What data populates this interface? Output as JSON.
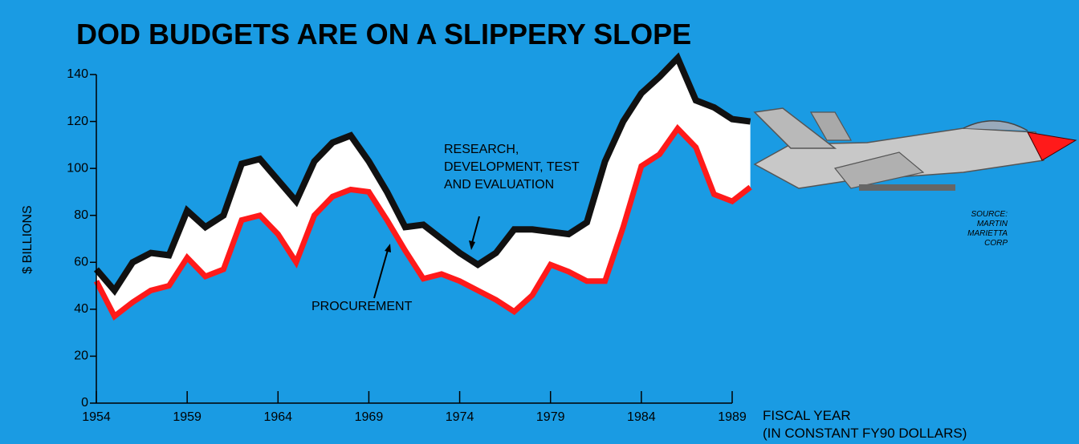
{
  "chart_data": {
    "type": "stacked-area",
    "title": "DOD BUDGETS ARE ON A SLIPPERY SLOPE",
    "ylabel": "$ BILLIONS",
    "xlabel": "FISCAL YEAR\n(IN CONSTANT FY90 DOLLARS)",
    "source": "SOURCE:\nMARTIN\nMARIETTA\nCORP",
    "x": [
      1954,
      1955,
      1956,
      1957,
      1958,
      1959,
      1960,
      1961,
      1962,
      1963,
      1964,
      1965,
      1966,
      1967,
      1968,
      1969,
      1970,
      1971,
      1972,
      1973,
      1974,
      1975,
      1976,
      1977,
      1978,
      1979,
      1980,
      1981,
      1982,
      1983,
      1984,
      1985,
      1986,
      1987,
      1988,
      1989,
      1990
    ],
    "series": [
      {
        "name": "PROCUREMENT",
        "color": "#ff1a1a",
        "values": [
          52,
          37,
          43,
          48,
          50,
          62,
          54,
          57,
          78,
          80,
          72,
          60,
          80,
          88,
          91,
          90,
          78,
          65,
          53,
          55,
          52,
          48,
          44,
          39,
          46,
          59,
          56,
          52,
          52,
          75,
          101,
          106,
          117,
          109,
          89,
          86,
          92
        ]
      },
      {
        "name": "RESEARCH, DEVELOPMENT, TEST AND EVALUATION",
        "color": "#111111",
        "values": [
          5,
          11,
          17,
          16,
          13,
          20,
          21,
          23,
          24,
          24,
          23,
          26,
          23,
          23,
          23,
          13,
          12,
          10,
          23,
          15,
          12,
          11,
          20,
          35,
          28,
          14,
          16,
          25,
          51,
          45,
          31,
          33,
          30,
          20,
          37,
          35,
          28
        ]
      }
    ],
    "xlim": [
      1954,
      1989
    ],
    "xticks": [
      1954,
      1959,
      1964,
      1969,
      1974,
      1979,
      1984,
      1989
    ],
    "ylim": [
      0,
      140
    ],
    "yticks": [
      0,
      20,
      40,
      60,
      80,
      100,
      120,
      140
    ]
  }
}
